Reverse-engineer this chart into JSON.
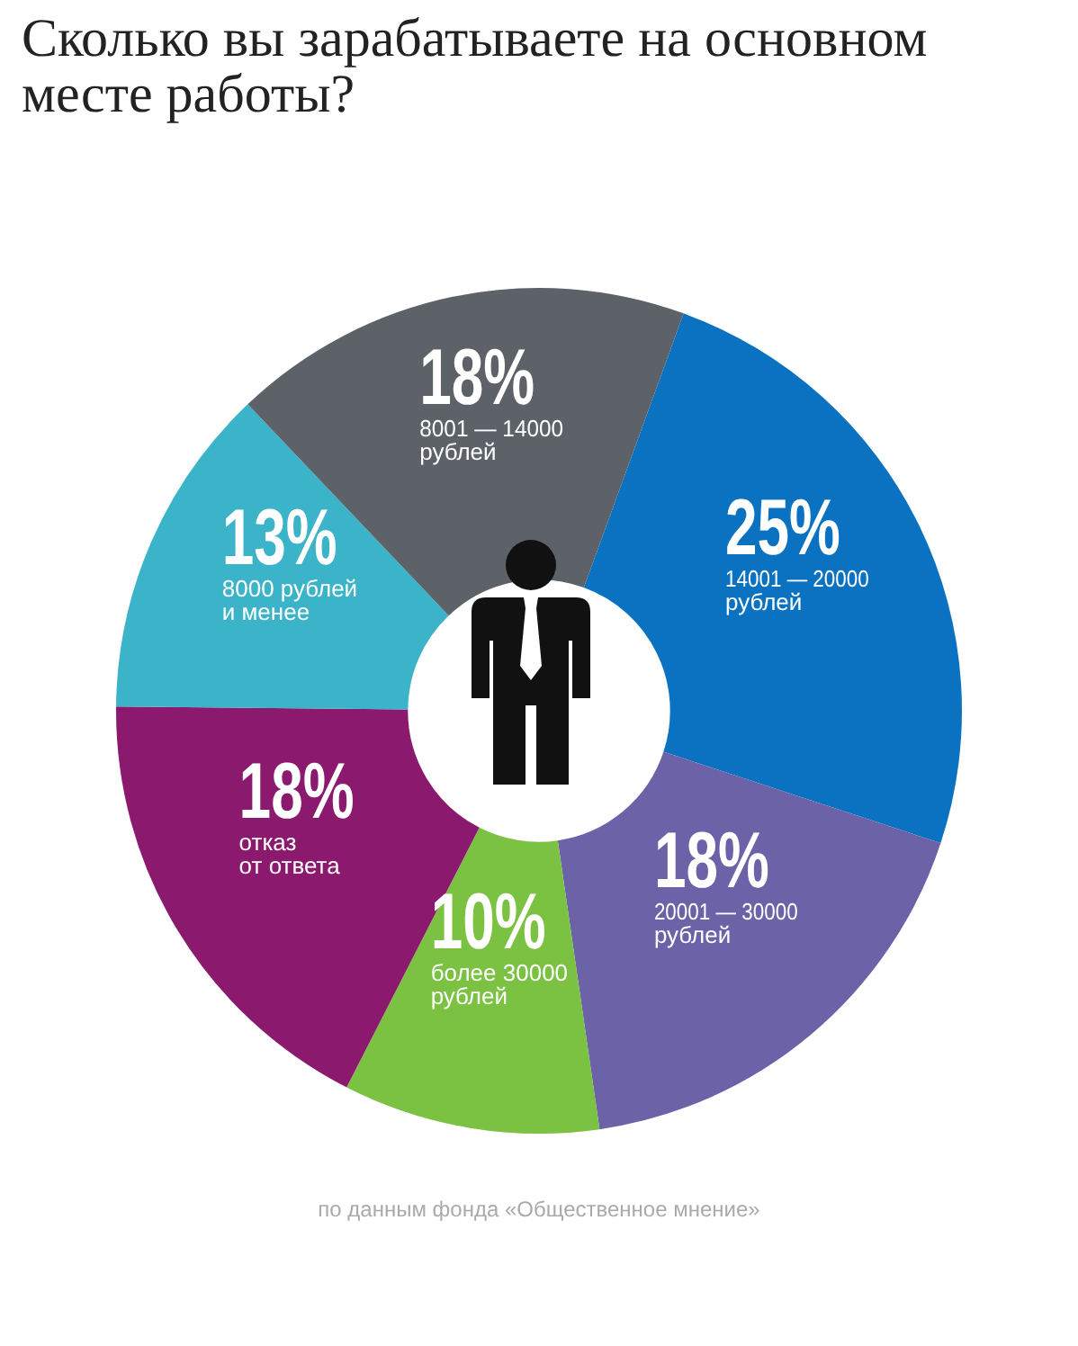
{
  "chart_data": {
    "type": "donut",
    "title": "Сколько вы зарабатываете на основном месте работы?",
    "categories": [
      "14001 — 20000\nрублей",
      "20001 — 30000\nрублей",
      "более 30000\nрублей",
      "отказ\nот ответа",
      "8000 рублей\nи менее",
      "8001 — 14000\nрублей"
    ],
    "values": [
      25,
      18,
      10,
      18,
      13,
      18
    ],
    "value_labels": [
      "25%",
      "18%",
      "10%",
      "18%",
      "13%",
      "18%"
    ],
    "colors": [
      "#0a72c0",
      "#6b62a8",
      "#7bc142",
      "#8b1a6f",
      "#3bb3c9",
      "#5c6268"
    ],
    "legend": false,
    "annotations": [
      "по данным фонда «Общественное мнение»"
    ]
  }
}
